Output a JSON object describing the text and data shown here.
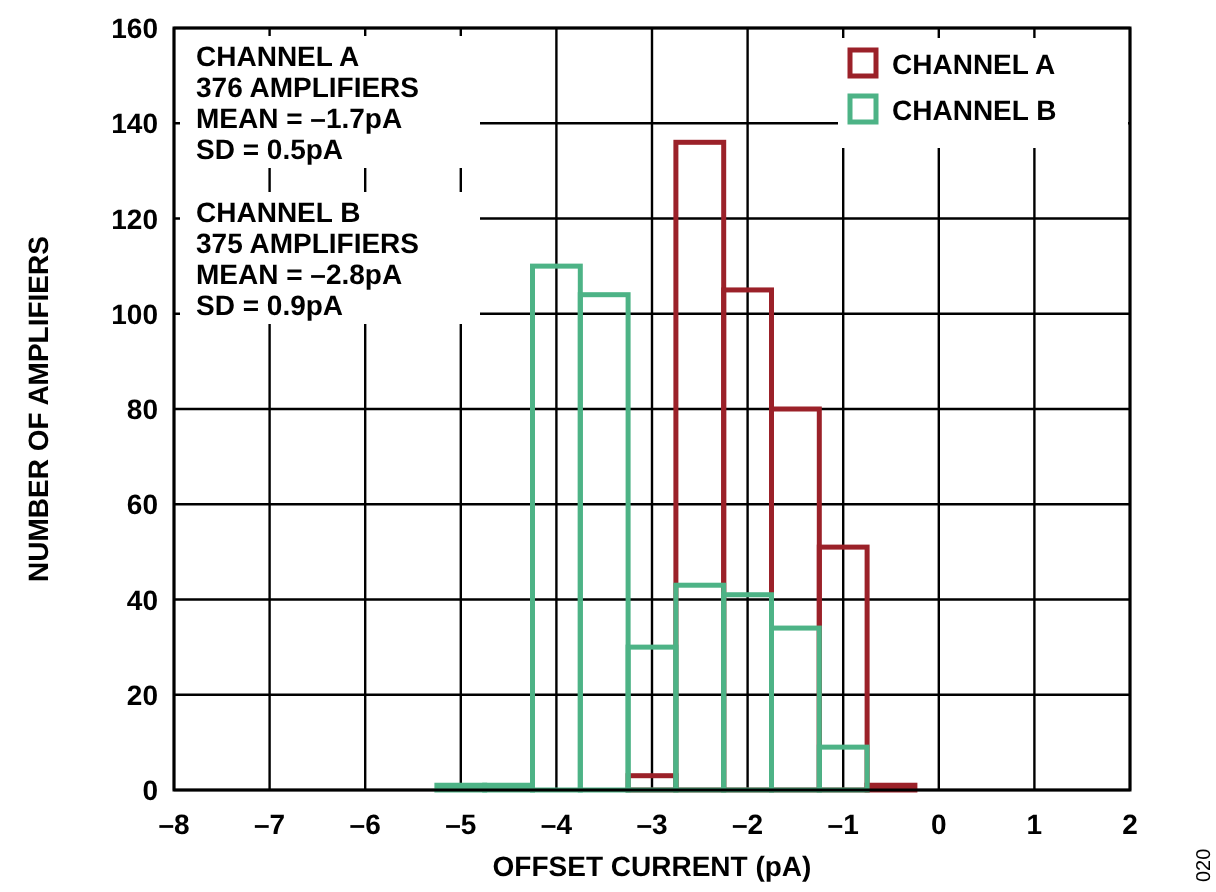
{
  "chart_data": {
    "type": "histogram",
    "xlabel": "OFFSET CURRENT (pA)",
    "ylabel": "NUMBER OF AMPLIFIERS",
    "bins": [
      -5.25,
      -4.75,
      -4.25,
      -3.75,
      -3.25,
      -2.75,
      -2.25,
      -1.75,
      -1.25,
      -0.75,
      -0.25
    ],
    "series": [
      {
        "name": "CHANNEL A",
        "color": "#9b2129",
        "values": [
          0,
          0,
          0,
          0,
          3,
          136,
          105,
          80,
          51,
          1
        ]
      },
      {
        "name": "CHANNEL B",
        "color": "#4db386",
        "values": [
          1,
          1,
          110,
          104,
          30,
          43,
          41,
          34,
          9,
          0
        ]
      }
    ],
    "xlim": [
      -8,
      2
    ],
    "xticks": [
      {
        "value": -8,
        "label": "–8"
      },
      {
        "value": -7,
        "label": "–7"
      },
      {
        "value": -6,
        "label": "–6"
      },
      {
        "value": -5,
        "label": "–5"
      },
      {
        "value": -4,
        "label": "–4"
      },
      {
        "value": -3,
        "label": "–3"
      },
      {
        "value": -2,
        "label": "–2"
      },
      {
        "value": -1,
        "label": "–1"
      },
      0,
      1,
      2
    ],
    "ylim": [
      0,
      160
    ],
    "yticks": [
      0,
      20,
      40,
      60,
      80,
      100,
      120,
      140,
      160
    ],
    "grid": true,
    "legend": "top right",
    "annotations": [
      "CHANNEL A\n376 AMPLIFIERS\nMEAN = –1.7pA\nSD = 0.5pA",
      "CHANNEL B\n375 AMPLIFIERS\nMEAN = –2.8pA\nSD = 0.9pA",
      "020"
    ]
  }
}
